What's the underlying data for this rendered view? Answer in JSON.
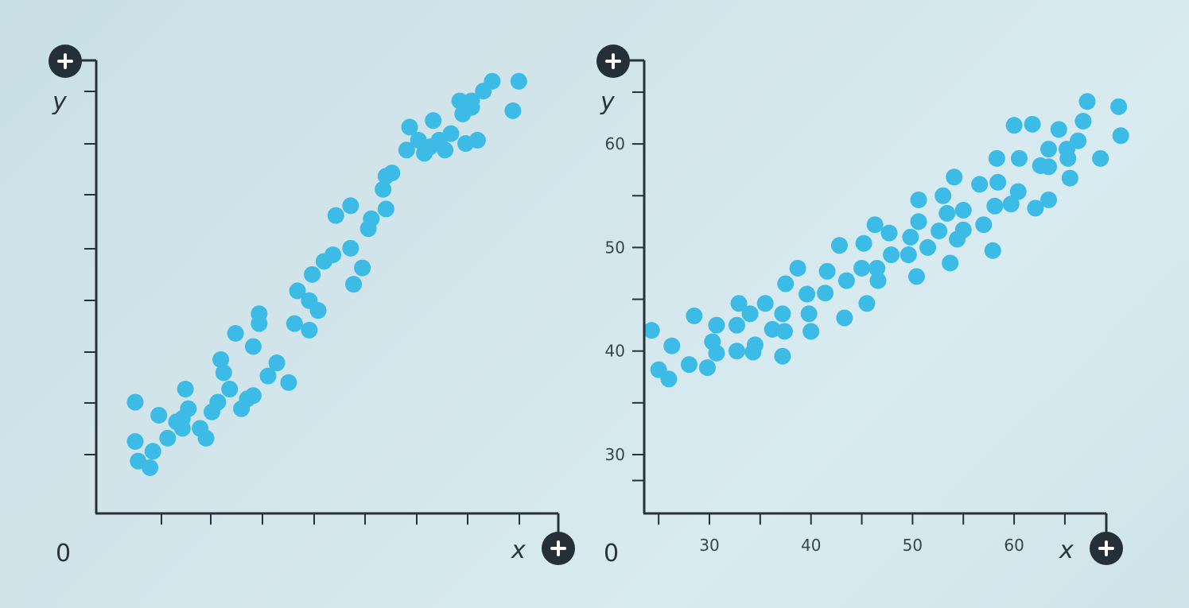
{
  "colors": {
    "point": "#3bbbe6",
    "axis": "#26313a",
    "badge": "#252f37"
  },
  "icons": {
    "axis_end": "plus-circle-icon"
  },
  "chart_data": [
    {
      "type": "scatter",
      "title": "",
      "xlabel": "x",
      "ylabel": "y",
      "origin_label": "0",
      "x_ticks": [
        "",
        "",
        "",
        "",
        "",
        "",
        "",
        ""
      ],
      "y_ticks": [
        "",
        "",
        "",
        "",
        "",
        "",
        "",
        ""
      ],
      "grid": false,
      "points": [
        [
          1.0,
          3.5
        ],
        [
          1.0,
          2.3
        ],
        [
          1.1,
          1.7
        ],
        [
          1.5,
          1.5
        ],
        [
          1.6,
          2.0
        ],
        [
          1.8,
          3.1
        ],
        [
          2.1,
          2.4
        ],
        [
          2.4,
          2.9
        ],
        [
          2.6,
          3.0
        ],
        [
          2.6,
          2.7
        ],
        [
          2.7,
          3.9
        ],
        [
          2.8,
          3.3
        ],
        [
          3.2,
          2.7
        ],
        [
          3.4,
          2.4
        ],
        [
          3.6,
          3.2
        ],
        [
          3.8,
          3.5
        ],
        [
          4.0,
          4.4
        ],
        [
          3.9,
          4.8
        ],
        [
          4.2,
          3.9
        ],
        [
          4.4,
          5.6
        ],
        [
          4.6,
          3.3
        ],
        [
          4.8,
          3.6
        ],
        [
          5.0,
          5.2
        ],
        [
          5.0,
          3.7
        ],
        [
          5.2,
          5.9
        ],
        [
          5.2,
          6.2
        ],
        [
          5.5,
          4.3
        ],
        [
          5.8,
          4.7
        ],
        [
          6.2,
          4.1
        ],
        [
          6.4,
          5.9
        ],
        [
          6.5,
          6.9
        ],
        [
          6.9,
          6.6
        ],
        [
          6.9,
          5.7
        ],
        [
          7.0,
          7.4
        ],
        [
          7.2,
          6.3
        ],
        [
          7.4,
          7.8
        ],
        [
          7.7,
          8.0
        ],
        [
          7.8,
          9.2
        ],
        [
          8.3,
          9.5
        ],
        [
          8.3,
          8.2
        ],
        [
          8.4,
          7.1
        ],
        [
          8.7,
          7.6
        ],
        [
          8.9,
          8.8
        ],
        [
          9.0,
          9.1
        ],
        [
          9.4,
          10.0
        ],
        [
          9.5,
          10.4
        ],
        [
          9.5,
          9.4
        ],
        [
          9.7,
          10.5
        ],
        [
          10.2,
          11.2
        ],
        [
          10.3,
          11.9
        ],
        [
          10.6,
          11.5
        ],
        [
          10.8,
          11.1
        ],
        [
          11.0,
          11.3
        ],
        [
          11.1,
          12.1
        ],
        [
          11.3,
          11.5
        ],
        [
          11.5,
          11.2
        ],
        [
          11.7,
          11.7
        ],
        [
          12.0,
          12.7
        ],
        [
          12.1,
          12.3
        ],
        [
          12.2,
          11.4
        ],
        [
          12.4,
          12.5
        ],
        [
          12.4,
          12.7
        ],
        [
          12.6,
          11.5
        ],
        [
          12.8,
          13.0
        ],
        [
          13.1,
          13.3
        ],
        [
          13.8,
          12.4
        ],
        [
          14.0,
          13.3
        ]
      ]
    },
    {
      "type": "scatter",
      "title": "",
      "xlabel": "x",
      "ylabel": "y",
      "origin_label": "0",
      "x_ticks": [
        "30",
        "40",
        "50",
        "60"
      ],
      "y_ticks": [
        "30",
        "40",
        "50",
        "60"
      ],
      "grid": false,
      "points": [
        [
          24.3,
          42.0
        ],
        [
          25.0,
          38.2
        ],
        [
          26.0,
          37.3
        ],
        [
          26.3,
          40.5
        ],
        [
          28.0,
          38.7
        ],
        [
          28.5,
          43.4
        ],
        [
          29.8,
          38.4
        ],
        [
          30.3,
          40.9
        ],
        [
          30.7,
          39.8
        ],
        [
          30.7,
          42.5
        ],
        [
          32.7,
          40.0
        ],
        [
          32.7,
          42.5
        ],
        [
          32.9,
          44.6
        ],
        [
          34.0,
          43.6
        ],
        [
          34.3,
          39.9
        ],
        [
          34.5,
          40.6
        ],
        [
          35.5,
          44.6
        ],
        [
          36.2,
          42.1
        ],
        [
          37.2,
          39.5
        ],
        [
          37.2,
          43.6
        ],
        [
          37.4,
          41.9
        ],
        [
          37.5,
          46.5
        ],
        [
          38.7,
          48.0
        ],
        [
          39.6,
          45.5
        ],
        [
          39.8,
          43.6
        ],
        [
          40.0,
          41.9
        ],
        [
          41.4,
          45.6
        ],
        [
          41.6,
          47.7
        ],
        [
          42.8,
          50.2
        ],
        [
          43.3,
          43.2
        ],
        [
          43.5,
          46.8
        ],
        [
          45.0,
          48.0
        ],
        [
          45.2,
          50.4
        ],
        [
          45.5,
          44.6
        ],
        [
          46.3,
          52.2
        ],
        [
          46.5,
          48.0
        ],
        [
          46.6,
          46.8
        ],
        [
          47.7,
          51.4
        ],
        [
          47.9,
          49.3
        ],
        [
          49.6,
          49.3
        ],
        [
          49.8,
          51.0
        ],
        [
          50.4,
          47.2
        ],
        [
          50.6,
          54.6
        ],
        [
          50.6,
          52.5
        ],
        [
          51.5,
          50.0
        ],
        [
          52.6,
          51.6
        ],
        [
          53.0,
          55.0
        ],
        [
          53.4,
          53.3
        ],
        [
          53.7,
          48.5
        ],
        [
          54.1,
          56.8
        ],
        [
          54.4,
          50.8
        ],
        [
          55.0,
          51.7
        ],
        [
          55.0,
          53.6
        ],
        [
          56.6,
          56.1
        ],
        [
          57.0,
          52.2
        ],
        [
          57.9,
          49.7
        ],
        [
          58.1,
          54.0
        ],
        [
          58.3,
          58.6
        ],
        [
          58.4,
          56.3
        ],
        [
          59.7,
          54.2
        ],
        [
          60.0,
          61.8
        ],
        [
          60.4,
          55.4
        ],
        [
          60.5,
          58.6
        ],
        [
          61.8,
          61.9
        ],
        [
          62.1,
          53.8
        ],
        [
          62.6,
          57.9
        ],
        [
          63.4,
          57.8
        ],
        [
          63.4,
          59.5
        ],
        [
          63.4,
          54.6
        ],
        [
          64.4,
          61.4
        ],
        [
          65.2,
          59.5
        ],
        [
          65.3,
          58.6
        ],
        [
          65.5,
          56.7
        ],
        [
          66.3,
          60.3
        ],
        [
          66.8,
          62.2
        ],
        [
          67.2,
          64.1
        ],
        [
          68.5,
          58.6
        ],
        [
          70.3,
          63.6
        ],
        [
          70.5,
          60.8
        ]
      ]
    }
  ]
}
